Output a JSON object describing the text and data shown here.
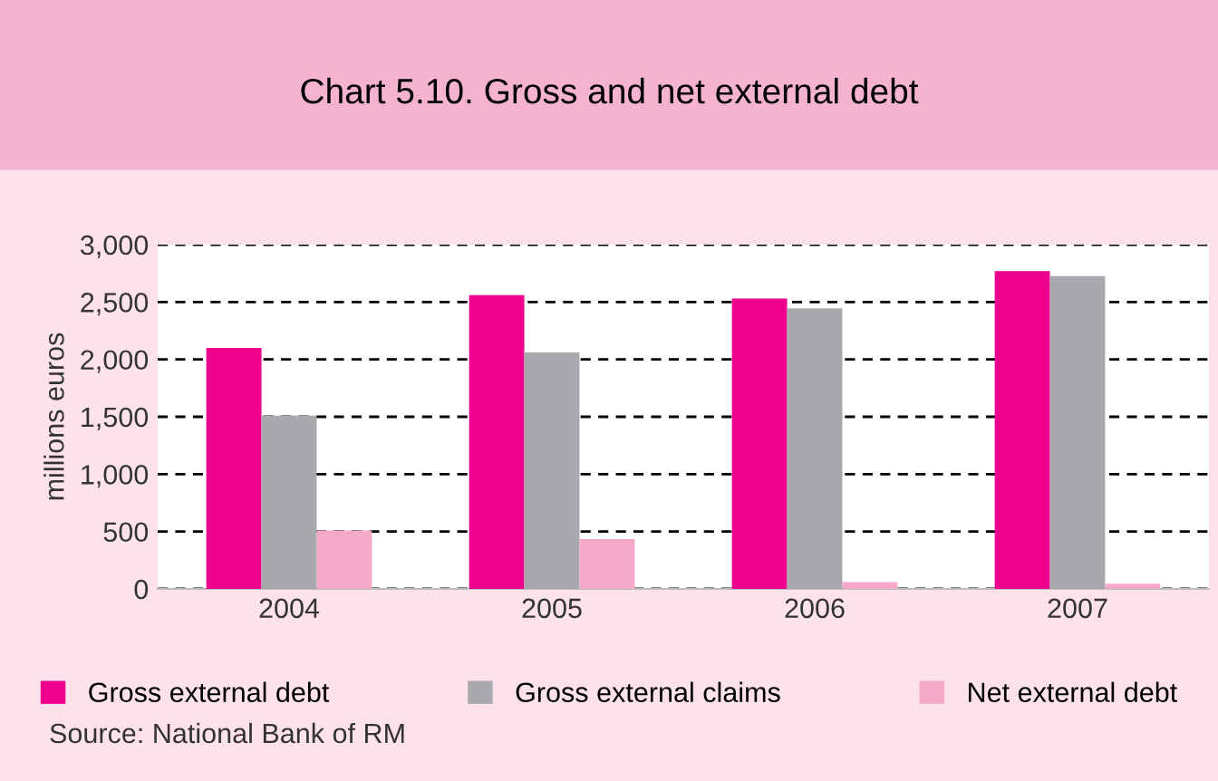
{
  "chart_data": {
    "type": "bar",
    "title": "Chart 5.10. Gross and net external debt",
    "ylabel": "millions euros",
    "categories": [
      "2004",
      "2005",
      "2006",
      "2007"
    ],
    "series": [
      {
        "name": "Gross external debt",
        "color": "#ec008c",
        "values": [
          2100,
          2560,
          2530,
          2770
        ]
      },
      {
        "name": "Gross external claims",
        "color": "#a7a9ac",
        "values": [
          1510,
          2060,
          2445,
          2725
        ]
      },
      {
        "name": "Net external debt",
        "color": "#f4a9c9",
        "values": [
          510,
          435,
          60,
          45
        ]
      }
    ],
    "ylim": [
      0,
      3000
    ],
    "yticks": [
      {
        "value": 0,
        "label": "0"
      },
      {
        "value": 500,
        "label": "500"
      },
      {
        "value": 1000,
        "label": "1,000"
      },
      {
        "value": 1500,
        "label": "1,500"
      },
      {
        "value": 2000,
        "label": "2,000"
      },
      {
        "value": 2500,
        "label": "2,500"
      },
      {
        "value": 3000,
        "label": "3,000"
      }
    ],
    "grid": "y",
    "legend": "bottom",
    "annotations": [
      "Source: National Bank of RM"
    ]
  }
}
